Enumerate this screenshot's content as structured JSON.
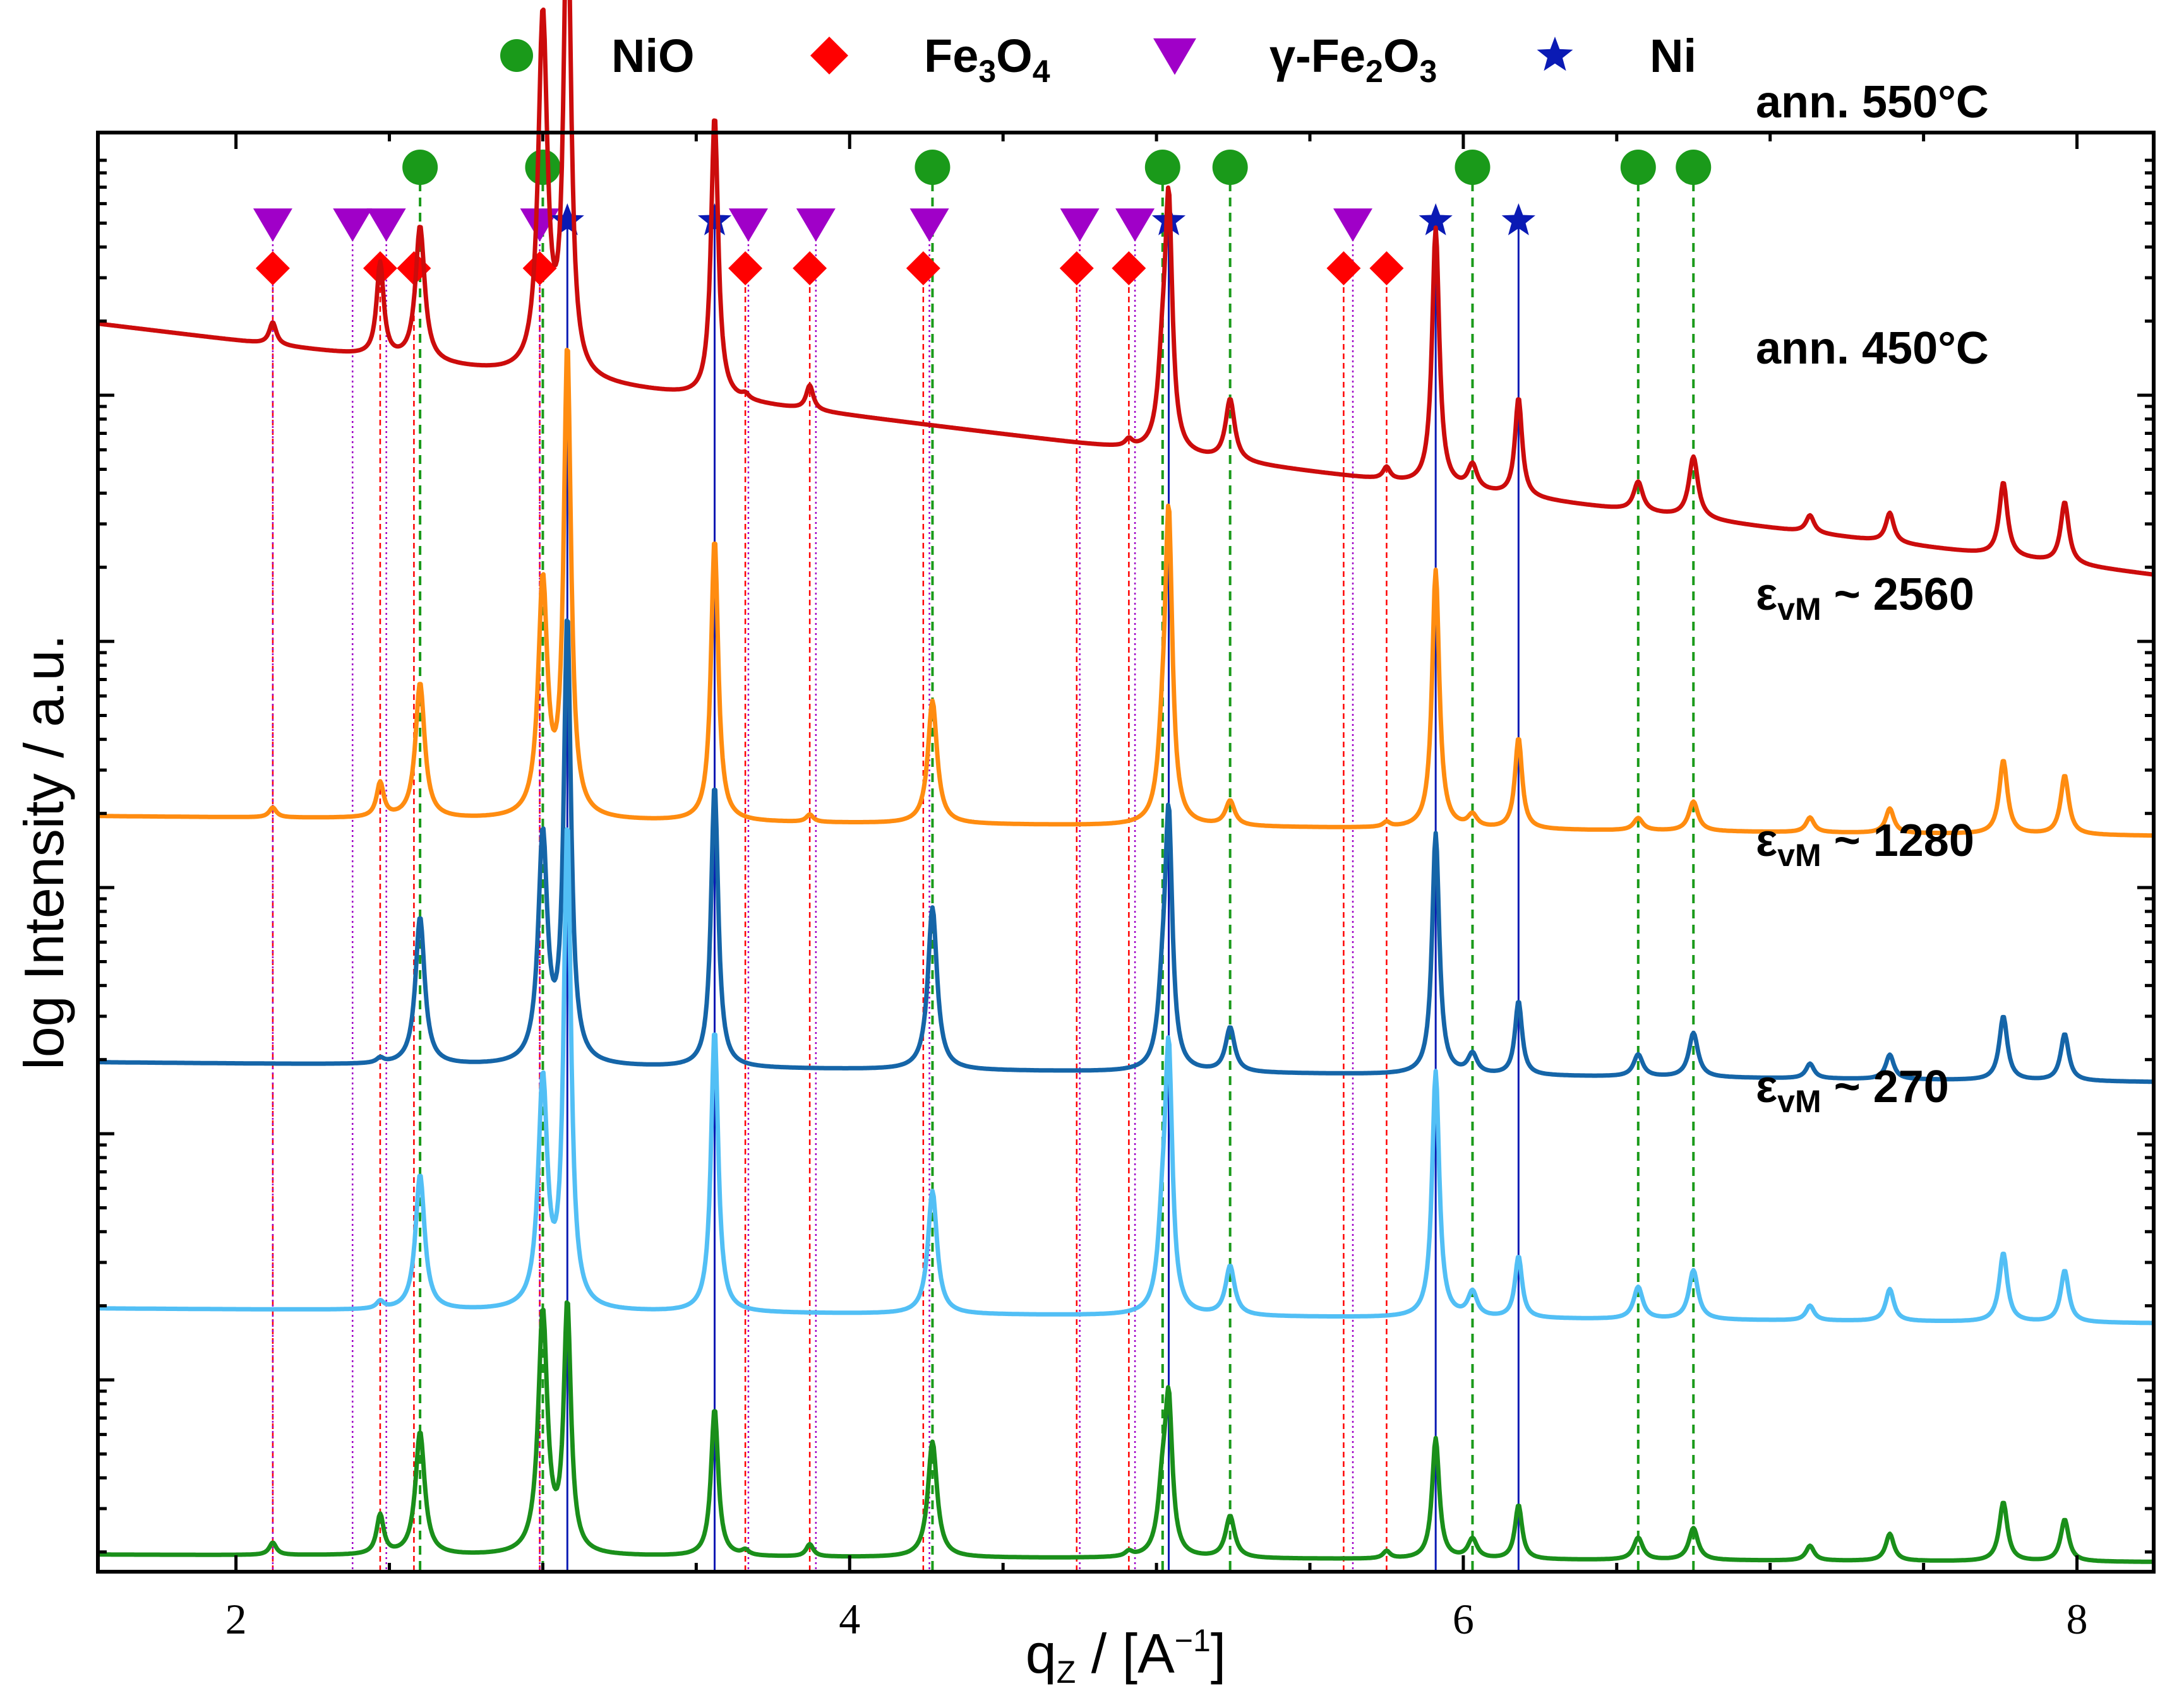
{
  "chart_data": {
    "type": "line",
    "title": "",
    "xlabel": {
      "base": "q",
      "sub": "Z",
      "unit_prefix": " / [A",
      "unit_sup": "−1",
      "unit_suffix": "]"
    },
    "ylabel": "log Intensity / a.u.",
    "xlim": [
      1.55,
      8.25
    ],
    "xticks": [
      2,
      4,
      6,
      8
    ],
    "x_minor_step": 0.5,
    "yscale": "log (offset traces)",
    "legend": {
      "placement": "top-center, outside plot",
      "entries": [
        {
          "id": "NiO",
          "text": "NiO",
          "marker": "circle",
          "color": "#1a9a1a"
        },
        {
          "id": "Fe3O4",
          "parts": [
            [
              "Fe",
              ""
            ],
            [
              "3",
              "sub"
            ],
            [
              "O",
              ""
            ],
            [
              "4",
              "sub"
            ]
          ],
          "marker": "diamond",
          "color": "#ff0000"
        },
        {
          "id": "gFe2O3",
          "parts": [
            [
              "γ-Fe",
              ""
            ],
            [
              "2",
              "sub"
            ],
            [
              "O",
              ""
            ],
            [
              "3",
              "sub"
            ]
          ],
          "marker": "triangle-down",
          "color": "#a000c8"
        },
        {
          "id": "Ni",
          "text": "Ni",
          "marker": "star",
          "color": "#0a1ab4"
        }
      ]
    },
    "reference_lines": {
      "NiO": {
        "style": "dashed",
        "color": "#1a9a1a",
        "positions": [
          2.6,
          3.0,
          4.27,
          5.02,
          5.24,
          6.03,
          6.57,
          6.75
        ]
      },
      "Fe3O4": {
        "style": "dashed",
        "color": "#ff0000",
        "positions": [
          2.12,
          2.47,
          2.58,
          2.99,
          3.66,
          3.87,
          4.24,
          4.74,
          4.91,
          5.61,
          5.75
        ]
      },
      "gFe2O3": {
        "style": "dotted",
        "color": "#a000c8",
        "positions": [
          2.12,
          2.38,
          2.49,
          2.99,
          3.67,
          3.89,
          4.26,
          4.75,
          4.93,
          5.64
        ]
      },
      "Ni": {
        "style": "solid",
        "color": "#0a1ab4",
        "positions": [
          3.08,
          3.56,
          5.04,
          5.91,
          6.18
        ]
      }
    },
    "peak_widths": {
      "NiO": 0.018,
      "Fe3O4": 0.014,
      "Ni": 0.014,
      "unassigned": 0.016
    },
    "unassigned_peaks": [
      7.13,
      7.39,
      7.76,
      7.96
    ],
    "series": [
      {
        "name": "ann. 550°C",
        "label_parts": [
          [
            "ann. 550°C",
            ""
          ]
        ],
        "color": "#cc0c0c",
        "offset": 4,
        "baseline": {
          "start": 1.0,
          "end": -0.02
        },
        "peaks": {
          "NiO": [
            0.55,
            1.45,
            0,
            0.3,
            0.25,
            0.1,
            0.12,
            0.25
          ],
          "Fe3O4": [
            0.09,
            0.38,
            0,
            0,
            0.02,
            0.1,
            0,
            0,
            0.03,
            0,
            0.05
          ],
          "Ni": [
            2.0,
            1.15,
            0.95,
            1.05,
            0.4
          ],
          "unassigned": [
            0.07,
            0.12,
            0.3,
            0.25
          ]
        }
      },
      {
        "name": "ann. 450°C",
        "label_parts": [
          [
            "ann. 450°C",
            ""
          ]
        ],
        "color": "#ff8c10",
        "offset": 3,
        "baseline": {
          "start": 0.0,
          "end": -0.08
        },
        "peaks": {
          "NiO": [
            0.55,
            0.95,
            0.5,
            0.25,
            0.1,
            0.05,
            0.05,
            0.12
          ],
          "Fe3O4": [
            0.04,
            0.14,
            0,
            0,
            0,
            0.03,
            0,
            0,
            0,
            0,
            0.02
          ],
          "Ni": [
            1.9,
            1.15,
            1.2,
            1.05,
            0.37
          ],
          "unassigned": [
            0.06,
            0.1,
            0.3,
            0.24
          ]
        }
      },
      {
        "name": "ε_vM ~ 2560",
        "label_parts": [
          [
            "ε",
            ""
          ],
          [
            "vM",
            "sub"
          ],
          [
            " ~  2560",
            ""
          ]
        ],
        "color": "#1565a8",
        "offset": 2,
        "baseline": {
          "start": 0.0,
          "end": -0.08
        },
        "peaks": {
          "NiO": [
            0.6,
            0.92,
            0.66,
            0.25,
            0.18,
            0.08,
            0.09,
            0.18
          ],
          "Fe3O4": [
            0,
            0.02,
            0,
            0,
            0,
            0,
            0,
            0,
            0,
            0,
            0
          ],
          "Ni": [
            1.8,
            1.15,
            0.98,
            0.98,
            0.3
          ],
          "unassigned": [
            0.06,
            0.1,
            0.26,
            0.19
          ]
        }
      },
      {
        "name": "ε_vM ~ 1280",
        "label_parts": [
          [
            "ε",
            ""
          ],
          [
            "vM",
            "sub"
          ],
          [
            " ~  1280",
            ""
          ]
        ],
        "color": "#52bff5",
        "offset": 1,
        "baseline": {
          "start": 0.0,
          "end": -0.06
        },
        "peaks": {
          "NiO": [
            0.55,
            0.92,
            0.5,
            0.3,
            0.2,
            0.1,
            0.13,
            0.2
          ],
          "Fe3O4": [
            0,
            0.03,
            0,
            0,
            0,
            0,
            0,
            0,
            0,
            0,
            0
          ],
          "Ni": [
            1.95,
            1.15,
            1.0,
            1.0,
            0.25
          ],
          "unassigned": [
            0.06,
            0.13,
            0.28,
            0.21
          ]
        }
      },
      {
        "name": "ε_vM ~ 270",
        "label_parts": [
          [
            "ε",
            ""
          ],
          [
            "vM",
            "sub"
          ],
          [
            " ~  270",
            ""
          ]
        ],
        "color": "#1a8f1a",
        "offset": 0,
        "baseline": {
          "start": 0.0,
          "end": -0.03
        },
        "peaks": {
          "NiO": [
            0.5,
            0.98,
            0.47,
            0.25,
            0.17,
            0.08,
            0.09,
            0.13
          ],
          "Fe3O4": [
            0.05,
            0.16,
            0,
            0,
            0.02,
            0.05,
            0,
            0,
            0.02,
            0,
            0.03
          ],
          "Ni": [
            1.0,
            0.6,
            0.58,
            0.49,
            0.22
          ],
          "unassigned": [
            0.06,
            0.11,
            0.24,
            0.17
          ]
        }
      }
    ]
  }
}
